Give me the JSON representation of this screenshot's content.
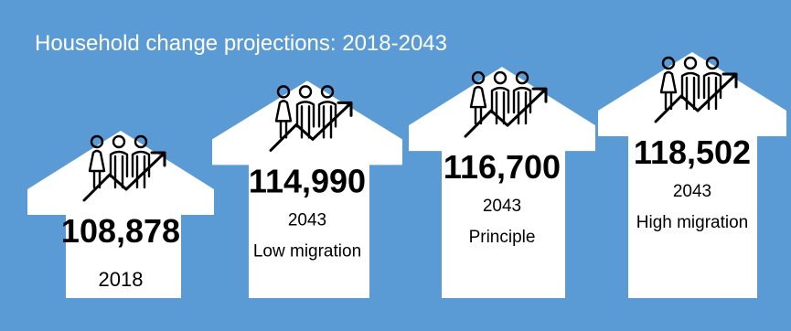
{
  "title": "Household change projections: 2018-2043",
  "colors": {
    "background": "#5b9bd5",
    "arrow": "#ffffff",
    "text": "#000000",
    "icon": "#000000"
  },
  "icons": [
    "people-rising-arrow-icon"
  ],
  "chart_data": {
    "type": "bar",
    "title": "Household change projections: 2018-2043",
    "categories": [
      "2018",
      "2043 Low migration",
      "2043 Principle",
      "2043 High migration"
    ],
    "values": [
      108878,
      114990,
      116700,
      118502
    ],
    "items": [
      {
        "value": 108878,
        "value_label": "108,878",
        "year": "2018",
        "scenario": ""
      },
      {
        "value": 114990,
        "value_label": "114,990",
        "year": "2043",
        "scenario": "Low migration"
      },
      {
        "value": 116700,
        "value_label": "116,700",
        "year": "2043",
        "scenario": "Principle"
      },
      {
        "value": 118502,
        "value_label": "118,502",
        "year": "2043",
        "scenario": "High migration"
      }
    ],
    "grid": false,
    "legend": "none"
  }
}
